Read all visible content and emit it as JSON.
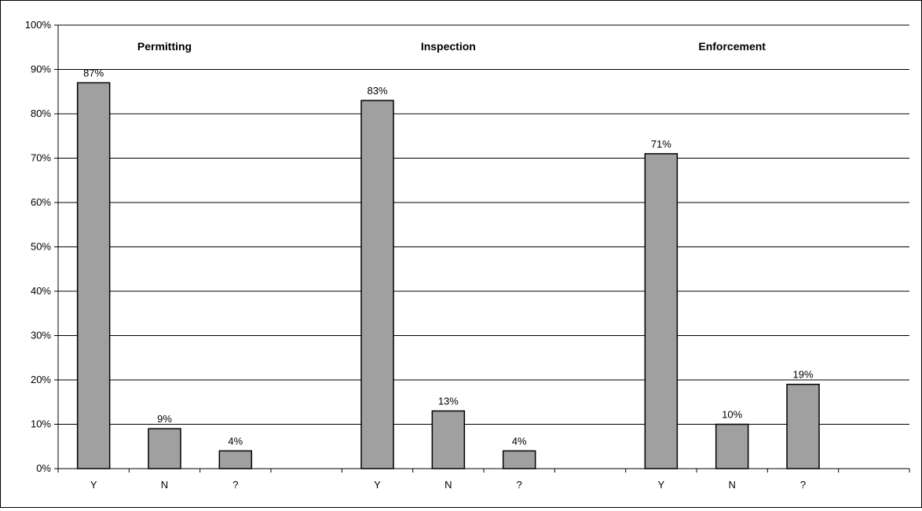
{
  "chart_data": {
    "type": "bar",
    "title": "",
    "xlabel": "",
    "ylabel": "",
    "ylim": [
      0,
      100
    ],
    "y_ticks": [
      "0%",
      "10%",
      "20%",
      "30%",
      "40%",
      "50%",
      "60%",
      "70%",
      "80%",
      "90%",
      "100%"
    ],
    "grid": "horizontal",
    "legend": "none",
    "bar_color": "#a0a0a0",
    "categories": [
      "Y",
      "N",
      "?",
      "",
      "Y",
      "N",
      "?",
      "",
      "Y",
      "N",
      "?",
      ""
    ],
    "values": [
      87,
      9,
      4,
      null,
      83,
      13,
      4,
      null,
      71,
      10,
      19,
      null
    ],
    "data_labels": [
      "87%",
      "9%",
      "4%",
      "",
      "83%",
      "13%",
      "4%",
      "",
      "71%",
      "10%",
      "19%",
      ""
    ],
    "groups": [
      {
        "title": "Permitting",
        "slots": [
          0,
          1,
          2
        ]
      },
      {
        "title": "Inspection",
        "slots": [
          4,
          5,
          6
        ]
      },
      {
        "title": "Enforcement",
        "slots": [
          8,
          9,
          10
        ]
      }
    ]
  }
}
